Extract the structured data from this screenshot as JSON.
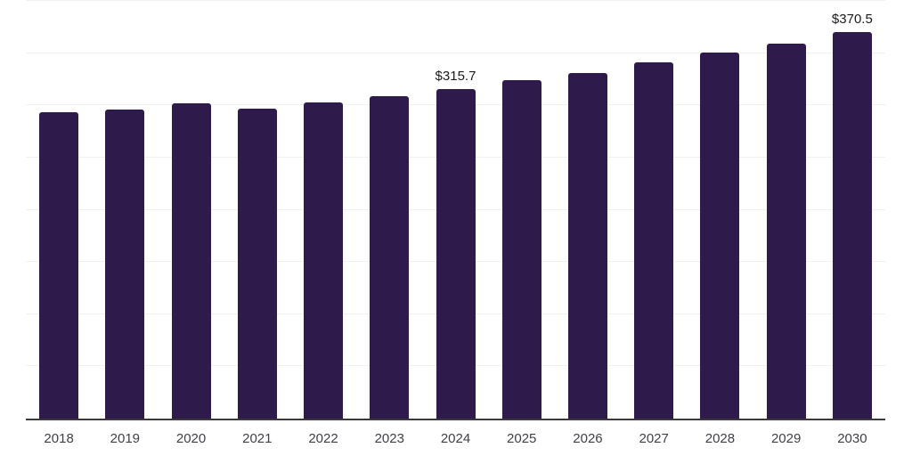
{
  "chart_data": {
    "type": "bar",
    "categories": [
      "2018",
      "2019",
      "2020",
      "2021",
      "2022",
      "2023",
      "2024",
      "2025",
      "2026",
      "2027",
      "2028",
      "2029",
      "2030"
    ],
    "values": [
      293.0,
      296.3,
      301.9,
      296.9,
      302.6,
      308.9,
      315.7,
      323.8,
      331.0,
      340.9,
      350.7,
      359.3,
      370.5
    ],
    "point_labels": [
      {
        "category": "2024",
        "text": "$315.7"
      },
      {
        "category": "2030",
        "text": "$370.5"
      }
    ],
    "ylim": [
      0,
      400
    ],
    "gridline_step": 50,
    "grid": "horizontal",
    "legend": "none",
    "colors": {
      "bar": "#2f1b4b",
      "gridline": "#f1f1f4",
      "axis_line": "#3a3a3a",
      "tick_label": "#3f3f46",
      "point_label": "#1a1a1a",
      "background": "#ffffff"
    }
  }
}
